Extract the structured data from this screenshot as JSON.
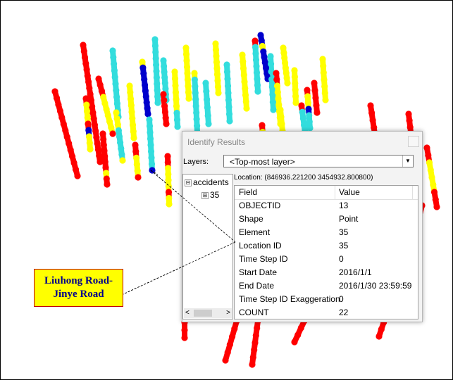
{
  "dialog": {
    "title": "Identify Results",
    "layers_label": "Layers:",
    "layers_value": "<Top-most layer>",
    "tree": {
      "root_label": "accidents",
      "root_toggle": "⊟",
      "child_label": "35",
      "child_toggle": "⊞"
    },
    "location": "Location: (846936.221200 3454932.800800)",
    "columns": {
      "field": "Field",
      "value": "Value"
    },
    "rows": [
      {
        "field": "OBJECTID",
        "value": "13"
      },
      {
        "field": "Shape",
        "value": "Point"
      },
      {
        "field": "Element",
        "value": "35"
      },
      {
        "field": "Location ID",
        "value": "35"
      },
      {
        "field": "Time Step ID",
        "value": "0"
      },
      {
        "field": "Start Date",
        "value": "2016/1/1"
      },
      {
        "field": "End Date",
        "value": "2016/1/30 23:59:59"
      },
      {
        "field": "Time Step ID Exaggeration",
        "value": "0"
      },
      {
        "field": "COUNT",
        "value": "22"
      }
    ]
  },
  "callout": {
    "text": "Liuhong Road-\nJinye Road"
  },
  "colors": {
    "red": "#ff0000",
    "yellow": "#ffff00",
    "cyan": "#33dddd",
    "blue": "#0000cc",
    "callout_fill": "#ffff00",
    "callout_border": "#c00000",
    "callout_text": "#00008b"
  }
}
